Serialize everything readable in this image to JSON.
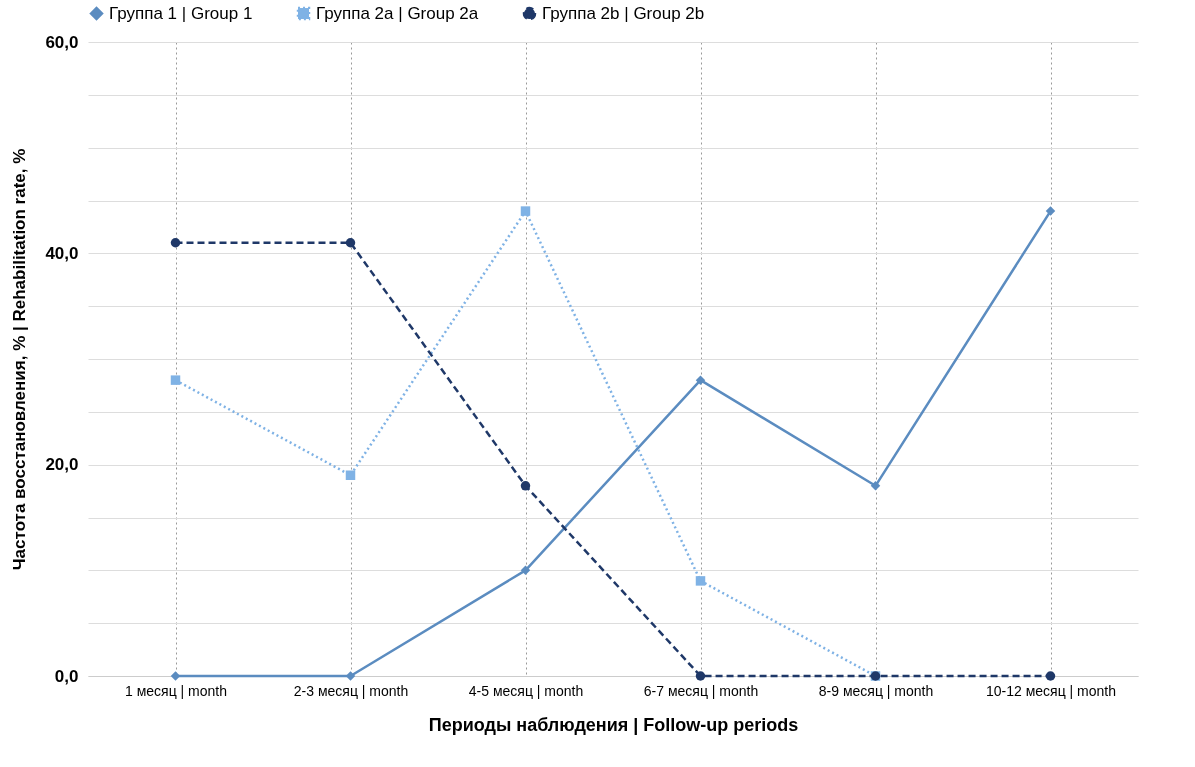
{
  "chart_data": {
    "type": "line",
    "xlabel": "Периоды наблюдения | Follow-up periods",
    "ylabel": "Частота восстановления, % | Rehabilitation rate, %",
    "categories": [
      "1 месяц | month",
      "2-3 месяц | month",
      "4-5 месяц | month",
      "6-7 месяц | month",
      "8-9 месяц | month",
      "10-12 месяц | month"
    ],
    "series": [
      {
        "name": "Группа 1 | Group 1",
        "color": "#5b8cc0",
        "marker": "diamond",
        "line_style": "solid",
        "values": [
          0,
          0,
          10,
          28,
          18,
          44
        ]
      },
      {
        "name": "Группа 2а | Group 2a",
        "color": "#7fb2e5",
        "marker": "square",
        "line_style": "dotted",
        "values": [
          28,
          19,
          44,
          9,
          0,
          null
        ]
      },
      {
        "name": "Группа 2b | Group 2b",
        "color": "#1f3868",
        "marker": "circle",
        "line_style": "dashed",
        "values": [
          41,
          41,
          18,
          0,
          0,
          0
        ]
      }
    ],
    "ylim": [
      0,
      60
    ],
    "yticks": [
      {
        "value": 0,
        "label": "0,0"
      },
      {
        "value": 5,
        "label": null
      },
      {
        "value": 10,
        "label": null
      },
      {
        "value": 15,
        "label": null
      },
      {
        "value": 20,
        "label": "20,0"
      },
      {
        "value": 25,
        "label": null
      },
      {
        "value": 30,
        "label": null
      },
      {
        "value": 35,
        "label": null
      },
      {
        "value": 40,
        "label": "40,0"
      },
      {
        "value": 45,
        "label": null
      },
      {
        "value": 50,
        "label": null
      },
      {
        "value": 55,
        "label": null
      },
      {
        "value": 60,
        "label": "60,0"
      }
    ],
    "grid": true,
    "legend": "top"
  }
}
